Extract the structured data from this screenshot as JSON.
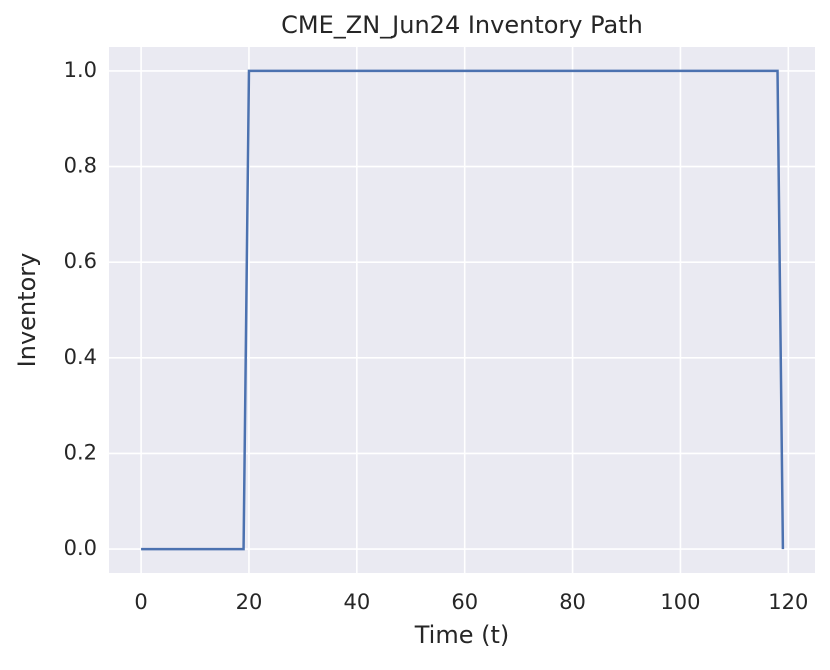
{
  "chart_data": {
    "type": "line",
    "title": "CME_ZN_Jun24 Inventory Path",
    "x_label": "Time (t)",
    "y_label": "Inventory",
    "x": [
      0,
      19,
      20,
      118,
      119
    ],
    "series": [
      {
        "name": "Inventory",
        "color": "#4c72b0",
        "values": [
          0,
          0,
          1,
          1,
          0
        ]
      }
    ],
    "xlim": [
      -5.95,
      124.95
    ],
    "xticks": [
      0,
      20,
      40,
      60,
      80,
      100,
      120
    ],
    "ylim": [
      -0.05,
      1.05
    ],
    "yticks": [
      {
        "value": 0,
        "label": "0.0"
      },
      0.2,
      0.4,
      0.6,
      0.8,
      {
        "value": 1,
        "label": "1.0"
      }
    ],
    "grid": true,
    "background": "#eaeaf2"
  }
}
